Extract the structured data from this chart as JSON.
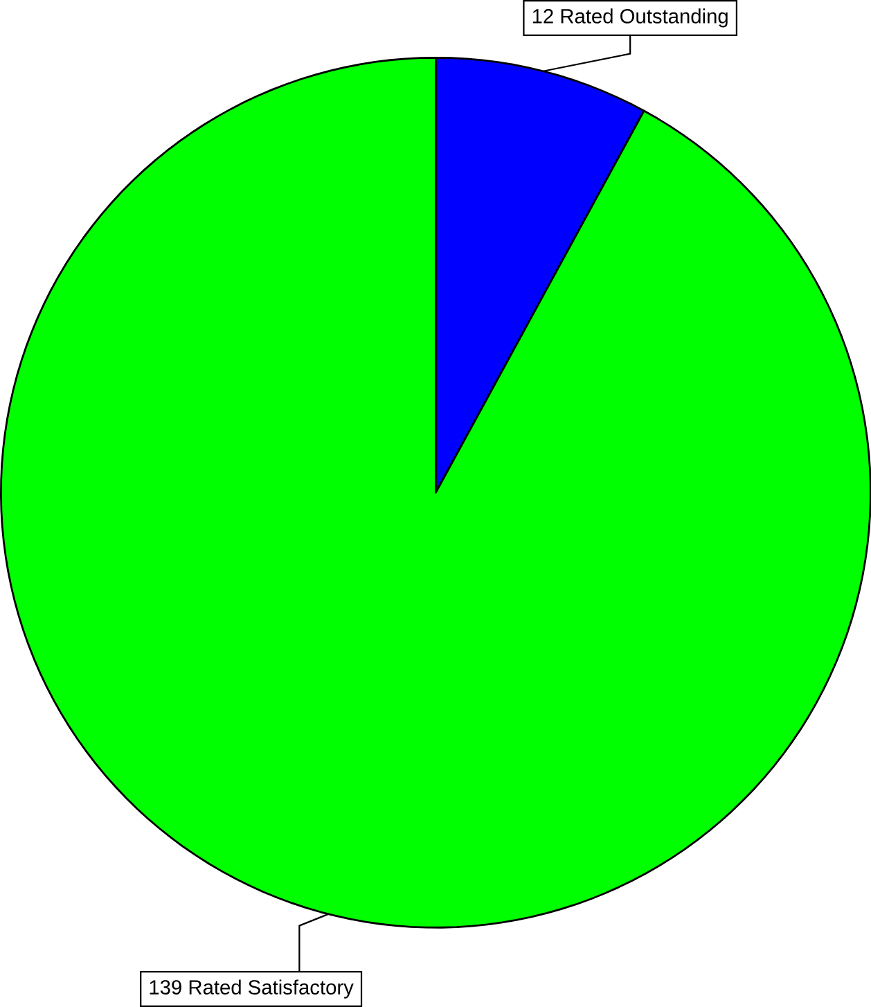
{
  "chart_data": {
    "type": "pie",
    "categories": [
      "Rated Outstanding",
      "Rated Satisfactory"
    ],
    "values": [
      12,
      139
    ],
    "colors": [
      "#0000ff",
      "#00ff00"
    ],
    "data_labels": true
  }
}
